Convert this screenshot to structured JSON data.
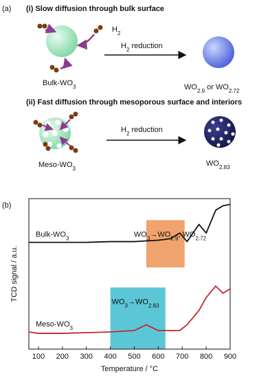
{
  "panel_a": {
    "label": "(a)",
    "step1": {
      "heading": "(i) Slow diffusion through bulk surface",
      "gas": [
        [
          "H",
          "2"
        ]
      ],
      "arrow_label": [
        [
          "H",
          "2"
        ],
        [
          " reduction"
        ]
      ],
      "reactant": [
        [
          "Bulk-WO",
          "3"
        ]
      ],
      "product": [
        [
          "WO",
          "2.9"
        ],
        [
          " or WO",
          "2.72"
        ]
      ]
    },
    "step2": {
      "heading": "(ii) Fast diffusion through mesoporous surface and interiors",
      "arrow_label": [
        [
          "H",
          "2"
        ],
        [
          " reduction"
        ]
      ],
      "reactant": [
        [
          "Meso-WO",
          "3"
        ]
      ],
      "product": [
        [
          "WO",
          "2.83"
        ]
      ]
    }
  },
  "chart_data": {
    "type": "line",
    "label": "(b)",
    "x_label": "Temperature / °C",
    "y_label": "TCD signal / a.u.",
    "x": [
      60,
      100,
      200,
      300,
      400,
      500,
      550,
      600,
      650,
      690,
      720,
      770,
      800,
      840,
      870,
      900
    ],
    "xlim": [
      60,
      900
    ],
    "xticks": [
      100,
      200,
      300,
      400,
      500,
      600,
      700,
      800,
      900
    ],
    "ylim": [
      0,
      105
    ],
    "series": [
      {
        "name": "Bulk-WO",
        "name_sub": "3",
        "color": "#111111",
        "values": [
          74.5,
          74.5,
          74.5,
          74.5,
          75,
          75,
          75.5,
          76,
          77,
          81,
          75,
          87,
          81,
          97,
          100,
          101
        ]
      },
      {
        "name": "Meso-WO",
        "name_sub": "3",
        "color": "#c0272d",
        "values": [
          12,
          11,
          11,
          11.5,
          12,
          13,
          17,
          13,
          13,
          13,
          17,
          27,
          36,
          44,
          39,
          42
        ]
      }
    ],
    "regions": [
      {
        "x": [
          550,
          710
        ],
        "y": [
          57,
          90
        ],
        "color": "#f0a36c",
        "label": [
          [
            "WO",
            "3"
          ],
          [
            "→WO",
            "2.9"
          ],
          [
            ", WO",
            "2.72"
          ]
        ]
      },
      {
        "x": [
          400,
          630
        ],
        "y": [
          0,
          43
        ],
        "color": "#5bc7d6",
        "label": [
          [
            "WO",
            "3"
          ],
          [
            "→WO",
            "2.83"
          ]
        ]
      }
    ]
  }
}
